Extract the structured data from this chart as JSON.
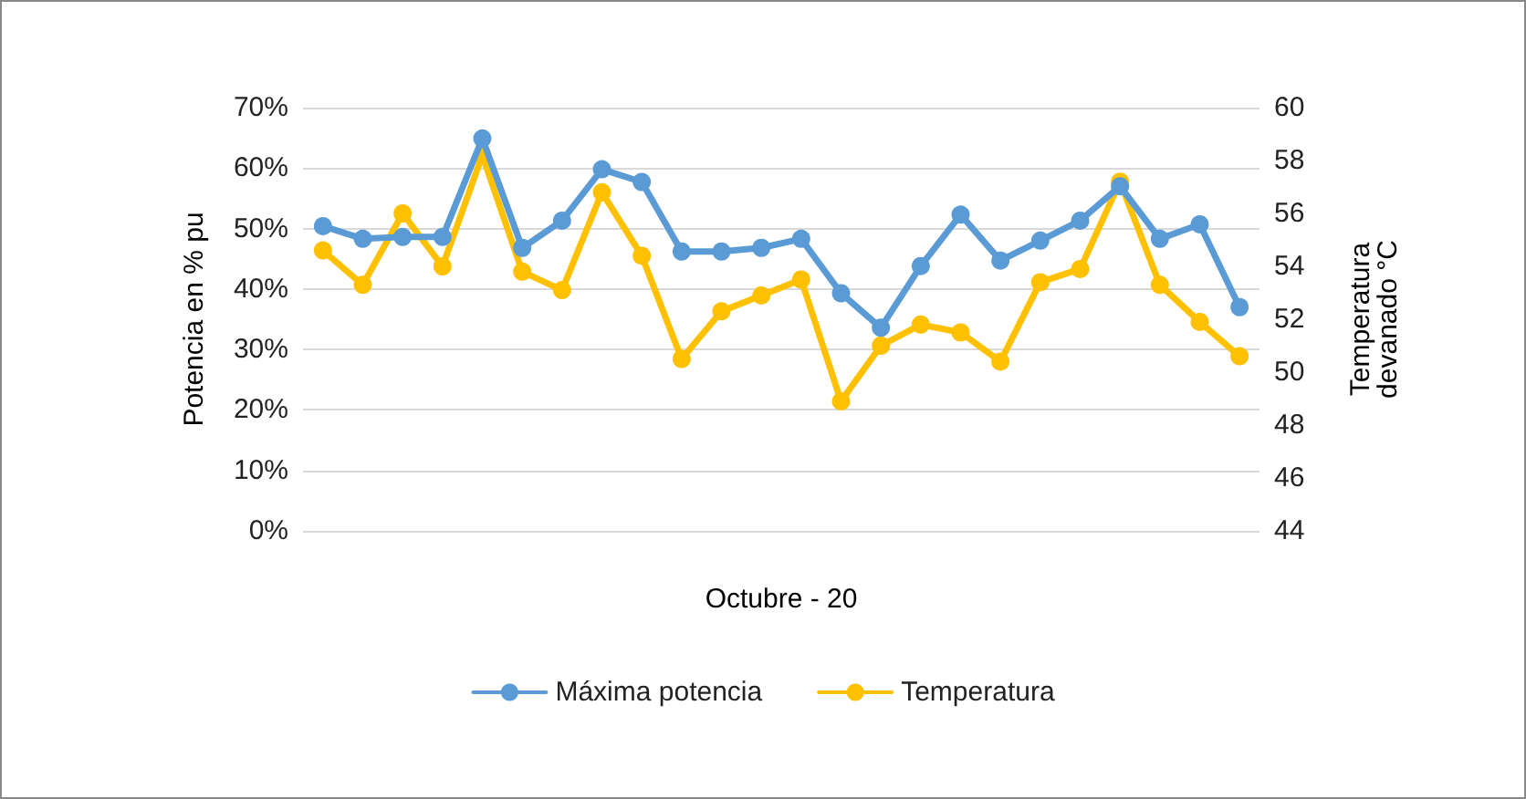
{
  "chart_data": {
    "type": "line",
    "xlabel": "Octubre - 20",
    "ylabel": "Potencia en % pu",
    "y2label": "Temperatura\ndevanado °C",
    "categories": [
      null,
      null,
      null,
      null,
      null,
      null,
      null,
      null,
      null,
      null,
      null,
      null,
      null,
      null,
      null,
      null,
      null,
      null,
      null,
      null,
      null,
      null,
      null,
      null
    ],
    "series": [
      {
        "name": "Máxima potencia",
        "color": "#5b9bd5",
        "values": [
          50.4,
          48.3,
          48.6,
          48.6,
          64.9,
          46.8,
          51.3,
          59.8,
          57.7,
          46.2,
          46.2,
          46.8,
          48.3,
          39.3,
          33.6,
          43.8,
          52.3,
          44.7,
          48,
          51.3,
          57,
          48.3,
          50.7,
          37
        ]
      },
      {
        "name": "Temperatura",
        "color": "#ffc000",
        "axis": "y2",
        "values": [
          54.6,
          53.3,
          56,
          54,
          58.2,
          53.8,
          53.1,
          56.8,
          54.4,
          50.5,
          52.3,
          52.9,
          53.5,
          48.9,
          51,
          51.8,
          51.5,
          50.4,
          53.4,
          53.9,
          57.2,
          53.3,
          51.9,
          50.6
        ]
      }
    ],
    "ylim": [
      0,
      70
    ],
    "yticks": [
      {
        "value": 0,
        "label": "0%"
      },
      {
        "value": 10,
        "label": "10%"
      },
      {
        "value": 20,
        "label": "20%"
      },
      {
        "value": 30,
        "label": "30%"
      },
      {
        "value": 40,
        "label": "40%"
      },
      {
        "value": 50,
        "label": "50%"
      },
      {
        "value": 60,
        "label": "60%"
      },
      {
        "value": 70,
        "label": "70%"
      }
    ],
    "y2lim": [
      44,
      60
    ],
    "y2ticks": [
      44,
      46,
      48,
      50,
      52,
      54,
      56,
      58,
      60
    ],
    "grid": "y",
    "legend": "bottom",
    "marker": "circle",
    "line_style": "solid"
  }
}
